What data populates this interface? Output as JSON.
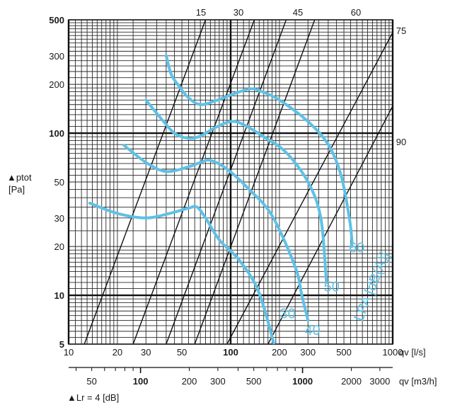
{
  "chart_data": {
    "type": "line",
    "x_scale": "log",
    "y_scale": "log",
    "xlim": [
      10,
      1000
    ],
    "ylim": [
      5,
      500
    ],
    "y_axis": {
      "unit_line1": "▲ptot",
      "unit_line2": "[Pa]",
      "ticks": [
        {
          "value": 5,
          "label": "5",
          "bold": true
        },
        {
          "value": 10,
          "label": "10",
          "bold": true
        },
        {
          "value": 20,
          "label": "20",
          "bold": false
        },
        {
          "value": 30,
          "label": "30",
          "bold": false
        },
        {
          "value": 50,
          "label": "50",
          "bold": false
        },
        {
          "value": 100,
          "label": "100",
          "bold": true
        },
        {
          "value": 200,
          "label": "200",
          "bold": false
        },
        {
          "value": 300,
          "label": "300",
          "bold": false
        },
        {
          "value": 500,
          "label": "500",
          "bold": true
        }
      ]
    },
    "x_axis_ls": {
      "unit": "qv [l/s]",
      "ticks": [
        {
          "value": 10,
          "label": "10",
          "bold": false
        },
        {
          "value": 20,
          "label": "20",
          "bold": false
        },
        {
          "value": 30,
          "label": "30",
          "bold": false
        },
        {
          "value": 50,
          "label": "50",
          "bold": false
        },
        {
          "value": 100,
          "label": "100",
          "bold": true
        },
        {
          "value": 200,
          "label": "200",
          "bold": false
        },
        {
          "value": 300,
          "label": "300",
          "bold": false
        },
        {
          "value": 500,
          "label": "500",
          "bold": false
        },
        {
          "value": 1000,
          "label": "1000",
          "bold": false
        }
      ]
    },
    "x_axis_m3h": {
      "unit": "qv [m3/h]",
      "ticks": [
        {
          "value": 50,
          "label": "50",
          "bold": false
        },
        {
          "value": 100,
          "label": "100",
          "bold": true
        },
        {
          "value": 200,
          "label": "200",
          "bold": false
        },
        {
          "value": 300,
          "label": "300",
          "bold": false
        },
        {
          "value": 500,
          "label": "500",
          "bold": false
        },
        {
          "value": 1000,
          "label": "1000",
          "bold": true
        },
        {
          "value": 2000,
          "label": "2000",
          "bold": false
        },
        {
          "value": 3000,
          "label": "3000",
          "bold": false
        }
      ]
    },
    "footnote": "▲Lr = 4 [dB]",
    "diagonal_lines": [
      {
        "label": "15",
        "x_at_bottom": 12.5,
        "x_at_top": 70
      },
      {
        "label": "30",
        "x_at_bottom": 25,
        "x_at_top": 140
      },
      {
        "label": "45",
        "x_at_bottom": 40,
        "x_at_top": 220
      },
      {
        "label": "60",
        "x_at_bottom": 60,
        "x_at_top": 330
      },
      {
        "label": "75",
        "x_at_bottom": 95,
        "x_at_top": 1100
      },
      {
        "label": "90",
        "x_at_bottom": 170,
        "x_at_top": 1900
      }
    ],
    "series_color": "#5ec1e6",
    "series_title": "LPA [dB(A)]",
    "series": [
      {
        "name": "30",
        "points": [
          [
            13.5,
            37
          ],
          [
            20,
            32
          ],
          [
            30,
            30
          ],
          [
            42,
            32
          ],
          [
            55,
            34.5
          ],
          [
            62,
            35
          ],
          [
            70,
            30
          ],
          [
            85,
            22
          ],
          [
            110,
            17
          ],
          [
            140,
            12
          ],
          [
            160,
            8.5
          ],
          [
            185,
            5
          ]
        ]
      },
      {
        "name": "40",
        "points": [
          [
            22,
            84
          ],
          [
            30,
            66
          ],
          [
            40,
            58
          ],
          [
            55,
            62
          ],
          [
            65,
            66
          ],
          [
            75,
            68
          ],
          [
            95,
            60
          ],
          [
            130,
            45
          ],
          [
            180,
            31
          ],
          [
            250,
            15
          ],
          [
            275,
            10
          ],
          [
            300,
            7
          ]
        ]
      },
      {
        "name": "50",
        "points": [
          [
            30,
            160
          ],
          [
            38,
            120
          ],
          [
            45,
            100
          ],
          [
            55,
            93
          ],
          [
            65,
            96
          ],
          [
            80,
            108
          ],
          [
            100,
            118
          ],
          [
            120,
            113
          ],
          [
            160,
            95
          ],
          [
            220,
            76
          ],
          [
            300,
            50
          ],
          [
            360,
            30
          ],
          [
            390,
            12
          ]
        ]
      },
      {
        "name": "60",
        "points": [
          [
            40,
            300
          ],
          [
            43,
            230
          ],
          [
            48,
            195
          ],
          [
            55,
            165
          ],
          [
            65,
            150
          ],
          [
            80,
            158
          ],
          [
            100,
            172
          ],
          [
            130,
            187
          ],
          [
            150,
            183
          ],
          [
            200,
            160
          ],
          [
            300,
            118
          ],
          [
            400,
            85
          ],
          [
            480,
            55
          ],
          [
            540,
            30
          ],
          [
            560,
            22
          ],
          [
            560,
            20
          ]
        ]
      }
    ],
    "curve_labels": [
      {
        "text": "30",
        "x": 225,
        "y": 7.2
      },
      {
        "text": "40",
        "x": 320,
        "y": 5.7
      },
      {
        "text": "50",
        "x": 420,
        "y": 10.6
      },
      {
        "text": "60",
        "x": 600,
        "y": 18.4
      }
    ]
  }
}
